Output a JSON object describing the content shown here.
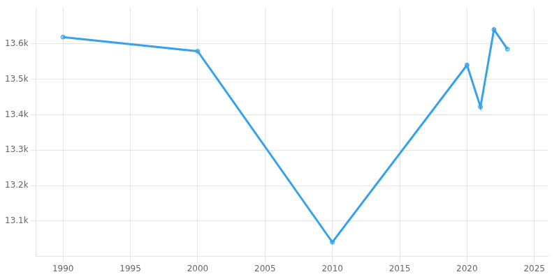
{
  "chart_data": {
    "type": "line",
    "x": [
      1990,
      2000,
      2010,
      2020,
      2021,
      2022,
      2023
    ],
    "values": [
      13619,
      13579,
      13040,
      13540,
      13422,
      13640,
      13585
    ],
    "xlim": [
      1988,
      2026
    ],
    "ylim": [
      13000,
      13700
    ],
    "xticks": [
      1990,
      1995,
      2000,
      2005,
      2010,
      2015,
      2020,
      2025
    ],
    "yticks": [
      {
        "value": 13100,
        "label": "13.1k"
      },
      {
        "value": 13200,
        "label": "13.2k"
      },
      {
        "value": 13300,
        "label": "13.3k"
      },
      {
        "value": 13400,
        "label": "13.4k"
      },
      {
        "value": 13500,
        "label": "13.5k"
      },
      {
        "value": 13600,
        "label": "13.6k"
      }
    ],
    "grid": true,
    "marker": "circle"
  }
}
